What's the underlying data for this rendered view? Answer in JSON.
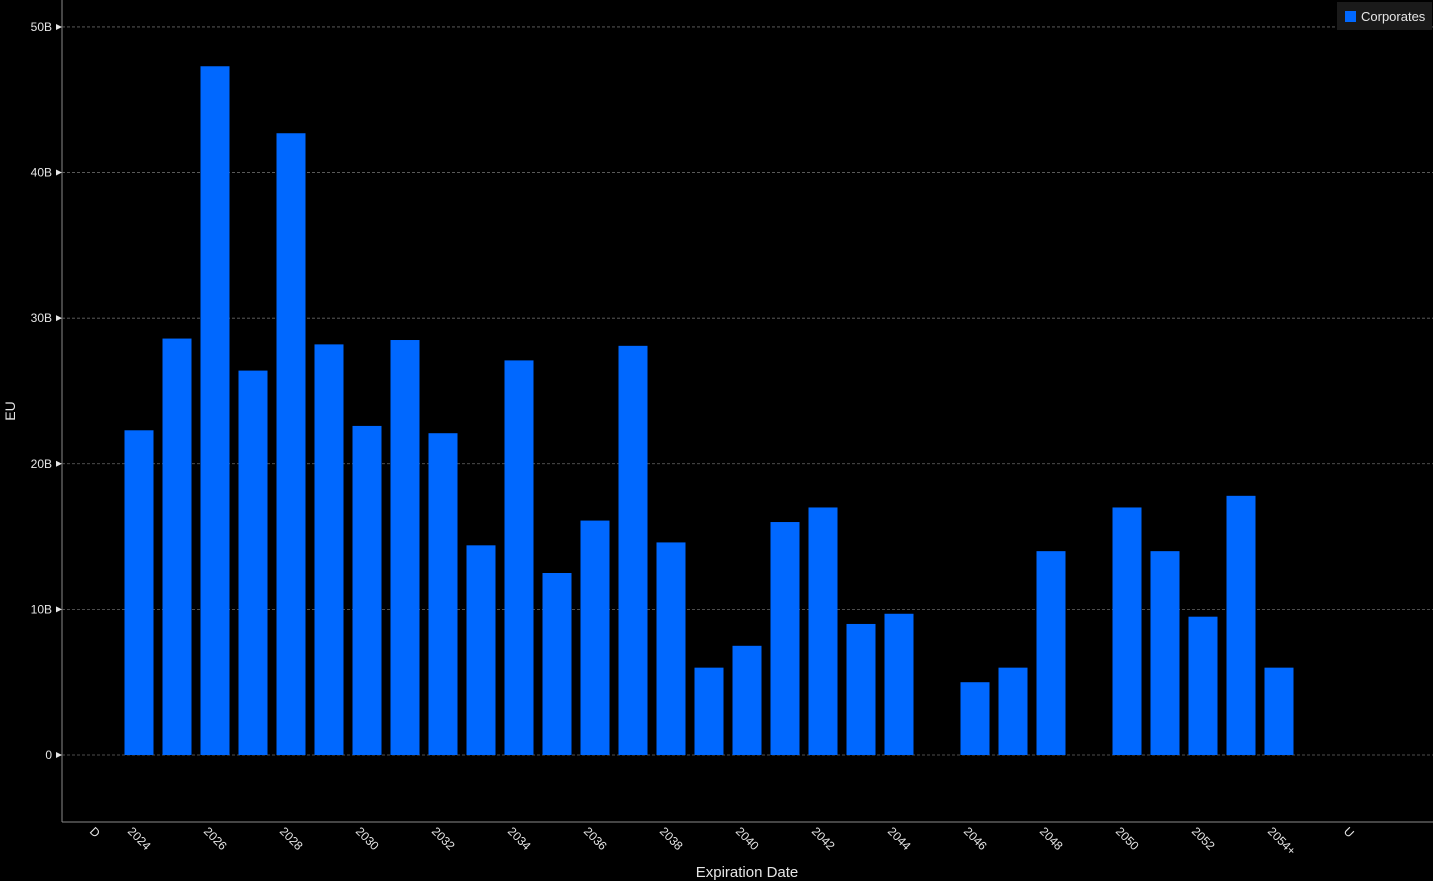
{
  "chart_data": {
    "type": "bar",
    "x_label": "Expiration Date",
    "y_label": "EU",
    "categories": [
      "D",
      "2024",
      null,
      "2026",
      null,
      "2028",
      null,
      "2030",
      null,
      "2032",
      null,
      "2034",
      null,
      "2036",
      null,
      "2038",
      null,
      "2040",
      null,
      "2042",
      null,
      "2044",
      null,
      "2046",
      null,
      "2048",
      null,
      "2050",
      null,
      "2052",
      null,
      "2054+",
      null,
      "U"
    ],
    "series": [
      {
        "name": "Corporates",
        "color": "#0068ff",
        "values": [
          null,
          22.3,
          28.6,
          47.3,
          26.4,
          42.7,
          28.2,
          22.6,
          28.5,
          22.1,
          14.4,
          27.1,
          12.5,
          16.1,
          28.1,
          14.6,
          6.0,
          7.5,
          16.0,
          17.0,
          9.0,
          9.7,
          0,
          5.0,
          6.0,
          14.0,
          0,
          17.0,
          14.0,
          9.5,
          17.8,
          6.0,
          null,
          null
        ]
      }
    ],
    "ylim": [
      -4.6,
      51.85
    ],
    "yticks": [
      0,
      {
        "value": 10,
        "label": "10B"
      },
      {
        "value": 20,
        "label": "20B"
      },
      {
        "value": 30,
        "label": "30B"
      },
      {
        "value": 40,
        "label": "40B"
      },
      {
        "value": 50,
        "label": "50B"
      }
    ],
    "grid": true,
    "legend": "top-right"
  }
}
